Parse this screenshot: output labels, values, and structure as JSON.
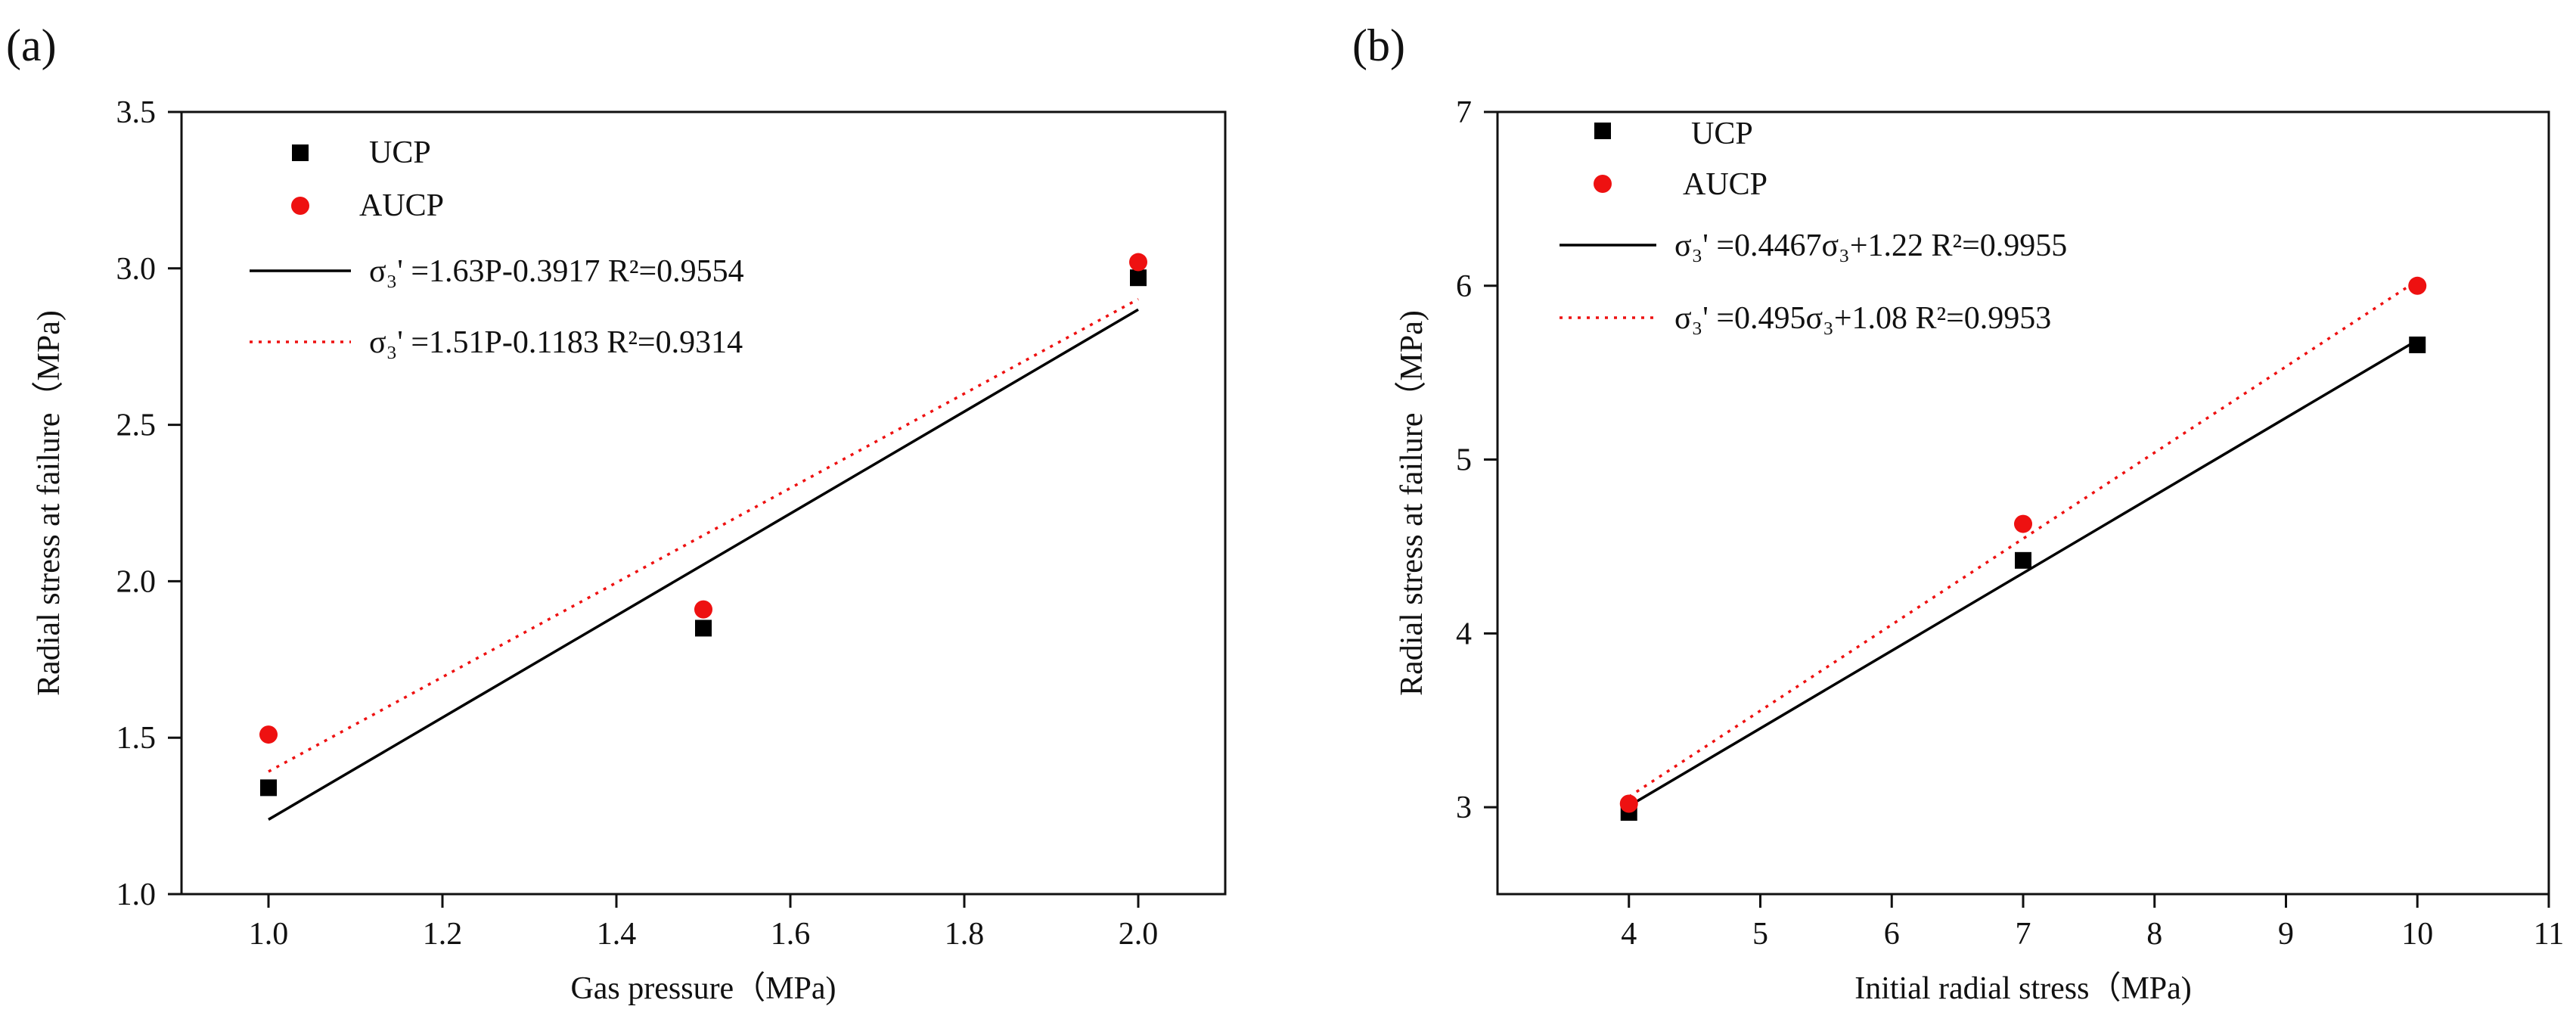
{
  "chart_data": [
    {
      "type": "scatter",
      "panel_label": "(a)",
      "xlabel": "Gas pressure（MPa)",
      "ylabel": "Radial stress at failure（MPa)",
      "xlim": [
        0.9,
        2.1
      ],
      "ylim": [
        1.0,
        3.5
      ],
      "xticks": [
        "1.0",
        "1.2",
        "1.4",
        "1.6",
        "1.8",
        "2.0"
      ],
      "xtick_values": [
        1.0,
        1.2,
        1.4,
        1.6,
        1.8,
        2.0
      ],
      "yticks": [
        "1.0",
        "1.5",
        "2.0",
        "2.5",
        "3.0",
        "3.5"
      ],
      "ytick_values": [
        1.0,
        1.5,
        2.0,
        2.5,
        3.0,
        3.5
      ],
      "series": [
        {
          "name": "UCP",
          "marker": "square",
          "color": "#000000",
          "x": [
            1.0,
            1.5,
            2.0
          ],
          "y": [
            1.34,
            1.85,
            2.97
          ]
        },
        {
          "name": "AUCP",
          "marker": "circle",
          "color": "#ee1111",
          "x": [
            1.0,
            1.5,
            2.0
          ],
          "y": [
            1.51,
            1.91,
            3.02
          ]
        }
      ],
      "fits": [
        {
          "label": "σ₃' =1.63P-0.3917  R²=0.9554",
          "slope": 1.63,
          "intercept": -0.3917,
          "r2": "0.9554",
          "style": "solid",
          "color": "#000000",
          "x_range": [
            1.0,
            2.0
          ]
        },
        {
          "label": "σ₃' =1.51P-0.1183  R²=0.9314",
          "slope": 1.51,
          "intercept": -0.1183,
          "r2": "0.9314",
          "style": "dotted",
          "color": "#ee1111",
          "x_range": [
            1.0,
            2.0
          ]
        }
      ]
    },
    {
      "type": "scatter",
      "panel_label": "(b)",
      "xlabel": "Initial radial stress（MPa)",
      "ylabel": "Radial stress at failure（MPa)",
      "xlim": [
        3,
        11
      ],
      "ylim": [
        2.5,
        7
      ],
      "xticks": [
        "4",
        "5",
        "6",
        "7",
        "8",
        "9",
        "10",
        "11"
      ],
      "xtick_values": [
        4,
        5,
        6,
        7,
        8,
        9,
        10,
        11
      ],
      "yticks": [
        "3",
        "4",
        "5",
        "6",
        "7"
      ],
      "ytick_values": [
        3,
        4,
        5,
        6,
        7
      ],
      "series": [
        {
          "name": "UCP",
          "marker": "square",
          "color": "#000000",
          "x": [
            4,
            7,
            10
          ],
          "y": [
            2.97,
            4.42,
            5.66
          ]
        },
        {
          "name": "AUCP",
          "marker": "circle",
          "color": "#ee1111",
          "x": [
            4,
            7,
            10
          ],
          "y": [
            3.02,
            4.63,
            6.0
          ]
        }
      ],
      "fits": [
        {
          "label": "σ₃' =0.4467σ₃+1.22  R²=0.9955",
          "slope": 0.4467,
          "intercept": 1.22,
          "r2": "0.9955",
          "style": "solid",
          "color": "#000000",
          "x_range": [
            4,
            10
          ]
        },
        {
          "label": "σ₃' =0.495σ₃+1.08    R²=0.9953",
          "slope": 0.495,
          "intercept": 1.08,
          "r2": "0.9953",
          "style": "dotted",
          "color": "#ee1111",
          "x_range": [
            4,
            10
          ]
        }
      ]
    }
  ]
}
